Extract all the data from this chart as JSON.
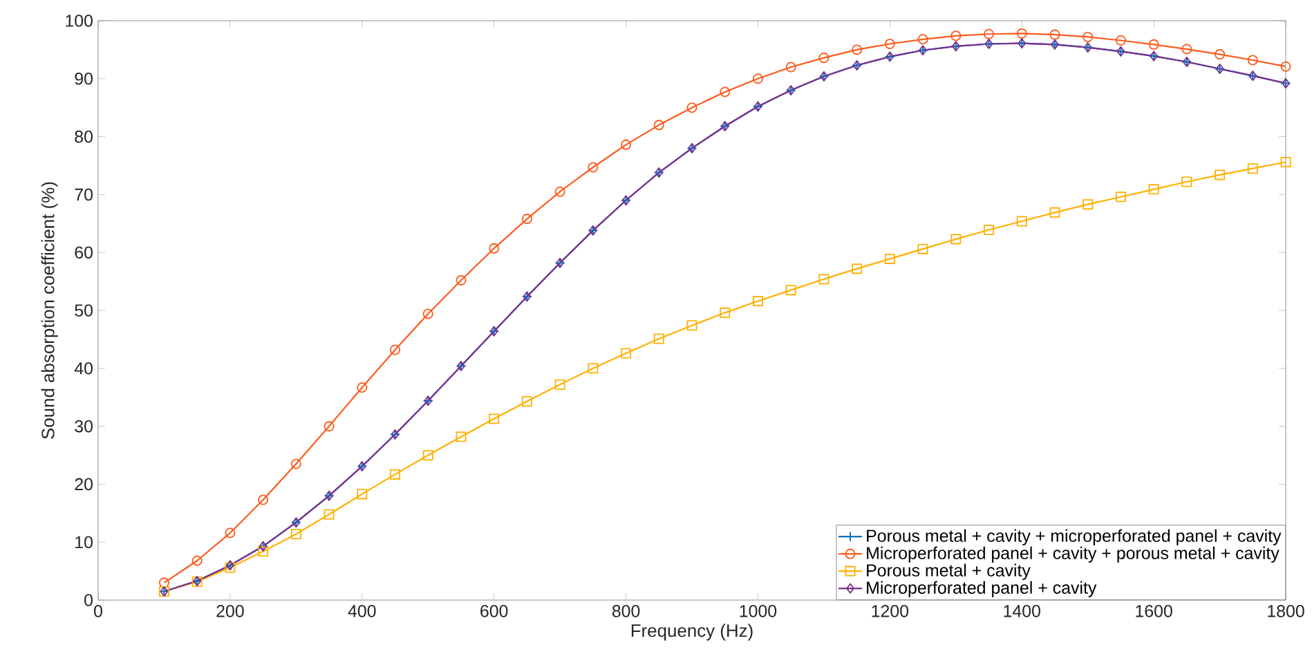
{
  "chart_data": {
    "type": "line",
    "xlabel": "Frequency (Hz)",
    "ylabel": "Sound absorption coefficient (%)",
    "x": [
      100,
      150,
      200,
      250,
      300,
      350,
      400,
      450,
      500,
      550,
      600,
      650,
      700,
      750,
      800,
      850,
      900,
      950,
      1000,
      1050,
      1100,
      1150,
      1200,
      1250,
      1300,
      1350,
      1400,
      1450,
      1500,
      1550,
      1600,
      1650,
      1700,
      1750,
      1800
    ],
    "series": [
      {
        "name": "Porous metal + cavity + microperforated panel + cavity",
        "color": "#0072bd",
        "marker": "cross",
        "values": [
          1.5,
          3.3,
          6,
          9.3,
          13.4,
          18,
          23.1,
          28.6,
          34.4,
          40.4,
          46.4,
          52.4,
          58.2,
          63.8,
          69,
          73.8,
          78,
          81.8,
          85.2,
          88,
          90.4,
          92.3,
          93.8,
          94.9,
          95.6,
          96,
          96.1,
          95.9,
          95.4,
          94.7,
          93.9,
          92.9,
          91.7,
          90.5,
          89.2
        ]
      },
      {
        "name": "Microperforated panel + cavity + porous metal + cavity",
        "color": "#fc5a1c",
        "marker": "circle",
        "values": [
          3,
          6.8,
          11.6,
          17.3,
          23.5,
          30,
          36.7,
          43.2,
          49.4,
          55.2,
          60.7,
          65.8,
          70.5,
          74.7,
          78.6,
          82,
          85,
          87.7,
          90,
          92,
          93.6,
          95,
          96,
          96.8,
          97.4,
          97.7,
          97.8,
          97.6,
          97.2,
          96.6,
          95.9,
          95.1,
          94.2,
          93.2,
          92.1
        ]
      },
      {
        "name": "Porous metal + cavity",
        "color": "#ffb000",
        "marker": "square",
        "values": [
          1.5,
          3.2,
          5.6,
          8.4,
          11.4,
          14.8,
          18.3,
          21.7,
          25,
          28.2,
          31.3,
          34.3,
          37.2,
          40,
          42.6,
          45.1,
          47.4,
          49.6,
          51.6,
          53.5,
          55.4,
          57.2,
          58.9,
          60.6,
          62.3,
          63.9,
          65.4,
          66.9,
          68.3,
          69.6,
          70.9,
          72.2,
          73.4,
          74.5,
          75.6
        ]
      },
      {
        "name": "Microperforated panel + cavity",
        "color": "#7e2f8e",
        "marker": "diamond",
        "values": [
          1.5,
          3.3,
          6,
          9.3,
          13.4,
          18,
          23.1,
          28.6,
          34.4,
          40.4,
          46.4,
          52.4,
          58.2,
          63.8,
          69,
          73.8,
          78,
          81.8,
          85.2,
          88,
          90.4,
          92.3,
          93.8,
          94.9,
          95.6,
          96,
          96.1,
          95.9,
          95.4,
          94.7,
          93.9,
          92.9,
          91.7,
          90.5,
          89.2
        ]
      }
    ],
    "xlim": [
      0,
      1800
    ],
    "xticks": [
      0,
      200,
      400,
      600,
      800,
      1000,
      1200,
      1400,
      1600,
      1800
    ],
    "ylim": [
      0,
      100
    ],
    "yticks": [
      0,
      10,
      20,
      30,
      40,
      50,
      60,
      70,
      80,
      90,
      100
    ],
    "grid": false,
    "legend": "bottom right",
    "line_style": "solid"
  }
}
